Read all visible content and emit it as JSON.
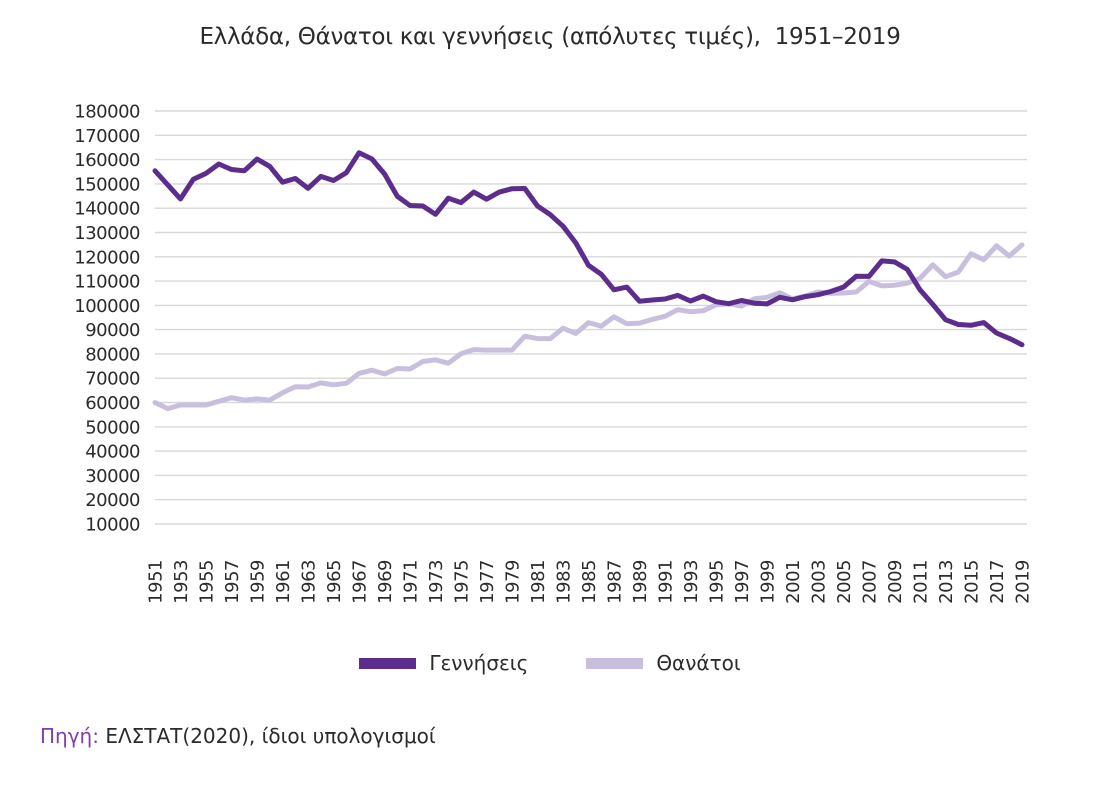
{
  "title": "Ελλάδα, Θάνατοι και γεννήσεις (απόλυτες τιμές),  1951–2019",
  "legend": {
    "births_label": "Γεννήσεις",
    "deaths_label": "Θανάτοι"
  },
  "source": {
    "label": "Πηγή:",
    "text": " ΕΛΣΤΑΤ(2020), ίδιοι υπολογισμοί"
  },
  "colors": {
    "births": "#5c2d8c",
    "deaths": "#c8bfdf",
    "grid": "#d8d8d8",
    "text": "#2b2b2b",
    "source_label": "#7e3fa8",
    "background": "#ffffff"
  },
  "chart_data": {
    "type": "line",
    "title": "Ελλάδα, Θάνατοι και γεννήσεις (απόλυτες τιμές),  1951–2019",
    "xlabel": "",
    "ylabel": "",
    "ylim": [
      10000,
      180000
    ],
    "grid": "horizontal",
    "legend_position": "bottom",
    "y_ticks": [
      180000,
      170000,
      160000,
      150000,
      140000,
      130000,
      120000,
      110000,
      100000,
      90000,
      80000,
      70000,
      60000,
      50000,
      40000,
      30000,
      20000,
      10000
    ],
    "x_tick_labels": [
      1951,
      1953,
      1955,
      1957,
      1959,
      1961,
      1963,
      1965,
      1967,
      1969,
      1971,
      1973,
      1975,
      1977,
      1979,
      1981,
      1983,
      1985,
      1987,
      1989,
      1991,
      1993,
      1995,
      1997,
      1999,
      2001,
      2003,
      2005,
      2007,
      2009,
      2011,
      2013,
      2015,
      2017,
      2019
    ],
    "x": [
      1951,
      1952,
      1953,
      1954,
      1955,
      1956,
      1957,
      1958,
      1959,
      1960,
      1961,
      1962,
      1963,
      1964,
      1965,
      1966,
      1967,
      1968,
      1969,
      1970,
      1971,
      1972,
      1973,
      1974,
      1975,
      1976,
      1977,
      1978,
      1979,
      1980,
      1981,
      1982,
      1983,
      1984,
      1985,
      1986,
      1987,
      1988,
      1989,
      1990,
      1991,
      1992,
      1993,
      1994,
      1995,
      1996,
      1997,
      1998,
      1999,
      2000,
      2001,
      2002,
      2003,
      2004,
      2005,
      2006,
      2007,
      2008,
      2009,
      2010,
      2011,
      2012,
      2013,
      2014,
      2015,
      2016,
      2017,
      2018,
      2019
    ],
    "series": [
      {
        "key": "births",
        "name": "Γεννήσεις",
        "color": "#5c2d8c",
        "values": [
          155400,
          149600,
          143800,
          151900,
          154300,
          158200,
          155900,
          155400,
          160200,
          157200,
          150700,
          152200,
          148200,
          153100,
          151400,
          154600,
          162800,
          160300,
          154100,
          144900,
          141100,
          140900,
          137500,
          144100,
          142300,
          146600,
          143700,
          146600,
          148000,
          148100,
          140900,
          137300,
          132600,
          125700,
          116500,
          112800,
          106400,
          107500,
          101700,
          102200,
          102600,
          104100,
          101800,
          103800,
          101500,
          100700,
          102000,
          100900,
          100600,
          103300,
          102300,
          103600,
          104400,
          105700,
          107500,
          112000,
          111900,
          118300,
          117900,
          114800,
          106400,
          100400,
          94100,
          92100,
          91800,
          92900,
          88600,
          86400,
          83800
        ]
      },
      {
        "key": "deaths",
        "name": "Θανάτοι",
        "color": "#c8bfdf",
        "values": [
          60000,
          57500,
          59000,
          59000,
          59000,
          60500,
          62000,
          61000,
          61500,
          61000,
          64000,
          66500,
          66400,
          68100,
          67300,
          67900,
          72000,
          73300,
          71800,
          74000,
          73800,
          76900,
          77600,
          76200,
          80100,
          81800,
          81600,
          81600,
          81600,
          87300,
          86300,
          86300,
          90600,
          88400,
          92900,
          91400,
          95300,
          92400,
          92700,
          94200,
          95500,
          98200,
          97400,
          97800,
          100200,
          100700,
          99700,
          102700,
          103300,
          105200,
          102600,
          103900,
          105500,
          104900,
          105100,
          105500,
          109900,
          108000,
          108300,
          109100,
          111100,
          116700,
          111800,
          113700,
          121200,
          118800,
          124500,
          120300,
          124900
        ]
      }
    ]
  }
}
